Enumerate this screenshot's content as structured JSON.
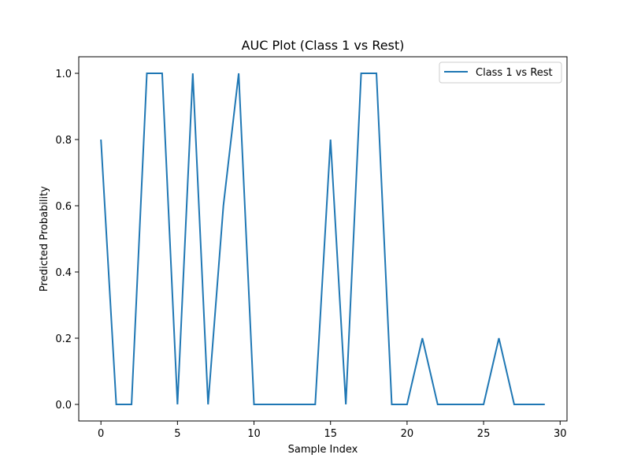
{
  "chart_data": {
    "type": "line",
    "title": "AUC Plot (Class 1 vs Rest)",
    "xlabel": "Sample Index",
    "ylabel": "Predicted Probability",
    "xlim": [
      -1.45,
      30.45
    ],
    "ylim": [
      -0.05,
      1.05
    ],
    "xticks": [
      0,
      5,
      10,
      15,
      20,
      25,
      30
    ],
    "xtick_labels": [
      "0",
      "5",
      "10",
      "15",
      "20",
      "25",
      "30"
    ],
    "yticks": [
      0.0,
      0.2,
      0.4,
      0.6,
      0.8,
      1.0
    ],
    "ytick_labels": [
      "0.0",
      "0.2",
      "0.4",
      "0.6",
      "0.8",
      "1.0"
    ],
    "grid": false,
    "legend": {
      "position": "upper right"
    },
    "series": [
      {
        "name": "Class 1 vs Rest",
        "color": "#1f77b4",
        "x": [
          0,
          1,
          2,
          3,
          4,
          5,
          6,
          7,
          8,
          9,
          10,
          11,
          12,
          13,
          14,
          15,
          16,
          17,
          18,
          19,
          20,
          21,
          22,
          23,
          24,
          25,
          26,
          27,
          28,
          29
        ],
        "y": [
          0.8,
          0.0,
          0.0,
          1.0,
          1.0,
          0.0,
          1.0,
          0.0,
          0.6,
          1.0,
          0.0,
          0.0,
          0.0,
          0.0,
          0.0,
          0.8,
          0.0,
          1.0,
          1.0,
          0.0,
          0.0,
          0.2,
          0.0,
          0.0,
          0.0,
          0.0,
          0.2,
          0.0,
          0.0,
          0.0
        ]
      }
    ]
  }
}
